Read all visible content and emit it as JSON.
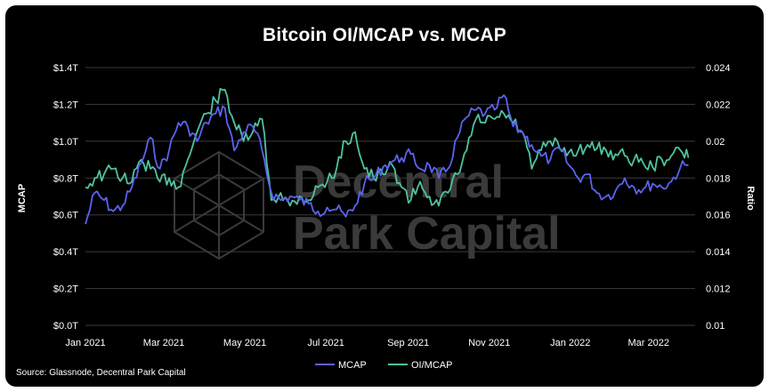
{
  "source": "Source: Glassnode, Decentral Park Capital",
  "watermark": {
    "line1": "Decentral",
    "line2": "Park Capital"
  },
  "colors": {
    "background": "#000000",
    "grid": "#3a3a3a",
    "mcap": "#5b63f0",
    "oimcap": "#4fc3a1",
    "watermark": "#3a3a3a"
  },
  "chart_data": {
    "type": "line",
    "title": "Bitcoin OI/MCAP vs. MCAP",
    "xlabel": "",
    "ylabel_left": "MCAP",
    "ylabel_right": "Ratio",
    "ylim_left": [
      0,
      1.4
    ],
    "ylim_right": [
      0.01,
      0.024
    ],
    "x_ticks": [
      "Jan 2021",
      "Mar 2021",
      "May 2021",
      "Jul 2021",
      "Sep 2021",
      "Nov 2021",
      "Jan 2022",
      "Mar 2022"
    ],
    "x_tick_dates": [
      "2021-01-01",
      "2021-03-01",
      "2021-05-01",
      "2021-07-01",
      "2021-09-01",
      "2021-11-01",
      "2022-01-01",
      "2022-03-01"
    ],
    "y_left_ticks": [
      "$0.0T",
      "$0.2T",
      "$0.4T",
      "$0.6T",
      "$0.8T",
      "$1.0T",
      "$1.2T",
      "$1.4T"
    ],
    "y_right_ticks": [
      "0.01",
      "0.012",
      "0.014",
      "0.016",
      "0.018",
      "0.02",
      "0.022",
      "0.024"
    ],
    "grid": true,
    "legend_position": "bottom-center",
    "series": [
      {
        "name": "MCAP",
        "axis": "left",
        "x": [
          "2021-01-01",
          "2021-01-08",
          "2021-01-15",
          "2021-01-22",
          "2021-01-29",
          "2021-02-05",
          "2021-02-12",
          "2021-02-19",
          "2021-02-26",
          "2021-03-05",
          "2021-03-12",
          "2021-03-19",
          "2021-03-26",
          "2021-04-02",
          "2021-04-09",
          "2021-04-16",
          "2021-04-23",
          "2021-04-30",
          "2021-05-07",
          "2021-05-14",
          "2021-05-21",
          "2021-05-28",
          "2021-06-04",
          "2021-06-11",
          "2021-06-18",
          "2021-06-25",
          "2021-07-02",
          "2021-07-09",
          "2021-07-16",
          "2021-07-23",
          "2021-07-30",
          "2021-08-06",
          "2021-08-13",
          "2021-08-20",
          "2021-08-27",
          "2021-09-03",
          "2021-09-10",
          "2021-09-17",
          "2021-09-24",
          "2021-10-01",
          "2021-10-08",
          "2021-10-15",
          "2021-10-22",
          "2021-10-29",
          "2021-11-05",
          "2021-11-12",
          "2021-11-19",
          "2021-11-26",
          "2021-12-03",
          "2021-12-10",
          "2021-12-17",
          "2021-12-24",
          "2021-12-31",
          "2022-01-07",
          "2022-01-14",
          "2022-01-21",
          "2022-01-28",
          "2022-02-04",
          "2022-02-11",
          "2022-02-18",
          "2022-02-25",
          "2022-03-04",
          "2022-03-11",
          "2022-03-18",
          "2022-03-25",
          "2022-03-31"
        ],
        "values": [
          0.55,
          0.72,
          0.68,
          0.62,
          0.65,
          0.75,
          0.88,
          1.02,
          0.85,
          0.95,
          1.1,
          1.08,
          1.0,
          1.1,
          1.15,
          1.18,
          0.95,
          1.05,
          1.08,
          0.95,
          0.72,
          0.68,
          0.7,
          0.68,
          0.66,
          0.62,
          0.64,
          0.63,
          0.59,
          0.65,
          0.77,
          0.8,
          0.86,
          0.89,
          0.91,
          0.93,
          0.85,
          0.87,
          0.8,
          0.85,
          1.02,
          1.13,
          1.17,
          1.15,
          1.17,
          1.25,
          1.08,
          1.05,
          0.98,
          0.92,
          0.9,
          0.96,
          0.87,
          0.8,
          0.82,
          0.72,
          0.7,
          0.73,
          0.8,
          0.75,
          0.74,
          0.77,
          0.75,
          0.78,
          0.86,
          0.87
        ]
      },
      {
        "name": "OI/MCAP",
        "axis": "right",
        "x": [
          "2021-01-01",
          "2021-01-08",
          "2021-01-15",
          "2021-01-22",
          "2021-01-29",
          "2021-02-05",
          "2021-02-12",
          "2021-02-19",
          "2021-02-26",
          "2021-03-05",
          "2021-03-12",
          "2021-03-19",
          "2021-03-26",
          "2021-04-02",
          "2021-04-09",
          "2021-04-16",
          "2021-04-23",
          "2021-04-30",
          "2021-05-07",
          "2021-05-14",
          "2021-05-21",
          "2021-05-28",
          "2021-06-04",
          "2021-06-11",
          "2021-06-18",
          "2021-06-25",
          "2021-07-02",
          "2021-07-09",
          "2021-07-16",
          "2021-07-23",
          "2021-07-30",
          "2021-08-06",
          "2021-08-13",
          "2021-08-20",
          "2021-08-27",
          "2021-09-03",
          "2021-09-10",
          "2021-09-17",
          "2021-09-24",
          "2021-10-01",
          "2021-10-08",
          "2021-10-15",
          "2021-10-22",
          "2021-10-29",
          "2021-11-05",
          "2021-11-12",
          "2021-11-19",
          "2021-11-26",
          "2021-12-03",
          "2021-12-10",
          "2021-12-17",
          "2021-12-24",
          "2021-12-31",
          "2022-01-07",
          "2022-01-14",
          "2022-01-21",
          "2022-01-28",
          "2022-02-04",
          "2022-02-11",
          "2022-02-18",
          "2022-02-25",
          "2022-03-04",
          "2022-03-11",
          "2022-03-18",
          "2022-03-25",
          "2022-03-31"
        ],
        "values": [
          0.0175,
          0.018,
          0.0182,
          0.0185,
          0.018,
          0.0178,
          0.019,
          0.0185,
          0.0178,
          0.018,
          0.0175,
          0.019,
          0.0205,
          0.0215,
          0.0222,
          0.0228,
          0.021,
          0.02,
          0.0205,
          0.0212,
          0.0168,
          0.0172,
          0.0165,
          0.017,
          0.0168,
          0.0175,
          0.0178,
          0.0185,
          0.02,
          0.0205,
          0.0185,
          0.018,
          0.0182,
          0.0187,
          0.0175,
          0.0168,
          0.0178,
          0.017,
          0.0165,
          0.0172,
          0.0182,
          0.0195,
          0.0212,
          0.021,
          0.0212,
          0.0215,
          0.021,
          0.0205,
          0.0185,
          0.0195,
          0.02,
          0.0196,
          0.0194,
          0.0195,
          0.0198,
          0.0196,
          0.0195,
          0.0193,
          0.0192,
          0.019,
          0.0188,
          0.0186,
          0.019,
          0.0192,
          0.0195,
          0.0191
        ]
      }
    ]
  }
}
